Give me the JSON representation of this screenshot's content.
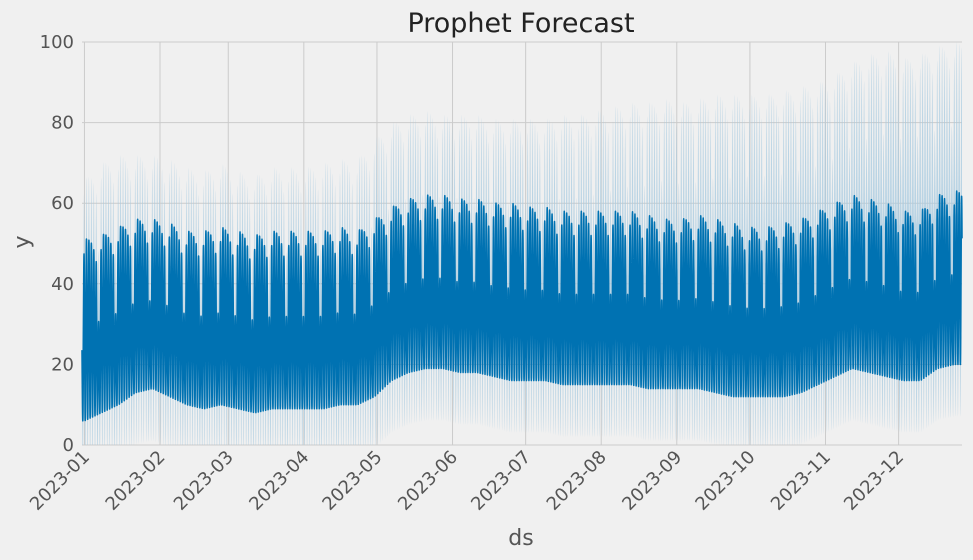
{
  "chart_data": {
    "type": "line",
    "title": "Prophet Forecast",
    "xlabel": "ds",
    "ylabel": "y",
    "x_range": [
      "2022-12-31",
      "2023-12-27"
    ],
    "ylim": [
      0,
      100
    ],
    "x_ticks": [
      "2023-01",
      "2023-02",
      "2023-03",
      "2023-04",
      "2023-05",
      "2023-06",
      "2023-07",
      "2023-08",
      "2023-09",
      "2023-10",
      "2023-11",
      "2023-12"
    ],
    "y_ticks": [
      0,
      20,
      40,
      60,
      80,
      100
    ],
    "grid": true,
    "legend": "none",
    "colors": {
      "forecast": "#0072b2",
      "interval": "#a8cbe0",
      "background": "#f0f0f0",
      "grid": "#cbcbcb"
    },
    "weekly_envelope": {
      "x": [
        "2023-01-01",
        "2023-01-08",
        "2023-01-15",
        "2023-01-22",
        "2023-01-29",
        "2023-02-05",
        "2023-02-12",
        "2023-02-19",
        "2023-02-26",
        "2023-03-05",
        "2023-03-12",
        "2023-03-19",
        "2023-03-26",
        "2023-04-02",
        "2023-04-09",
        "2023-04-16",
        "2023-04-23",
        "2023-04-30",
        "2023-05-07",
        "2023-05-14",
        "2023-05-21",
        "2023-05-28",
        "2023-06-04",
        "2023-06-11",
        "2023-06-18",
        "2023-06-25",
        "2023-07-02",
        "2023-07-09",
        "2023-07-16",
        "2023-07-23",
        "2023-07-30",
        "2023-08-06",
        "2023-08-13",
        "2023-08-20",
        "2023-08-27",
        "2023-09-03",
        "2023-09-10",
        "2023-09-17",
        "2023-09-24",
        "2023-10-01",
        "2023-10-08",
        "2023-10-15",
        "2023-10-22",
        "2023-10-29",
        "2023-11-05",
        "2023-11-12",
        "2023-11-19",
        "2023-11-26",
        "2023-12-03",
        "2023-12-10",
        "2023-12-17",
        "2023-12-24"
      ],
      "yhat_max": [
        51,
        52,
        54,
        56,
        56,
        55,
        53,
        53,
        54,
        53,
        52,
        53,
        53,
        53,
        53,
        54,
        53,
        56,
        59,
        61,
        62,
        62,
        61,
        61,
        60,
        60,
        59,
        59,
        58,
        58,
        58,
        58,
        58,
        57,
        56,
        56,
        57,
        56,
        55,
        54,
        54,
        55,
        56,
        58,
        60,
        62,
        61,
        60,
        58,
        58,
        62,
        63
      ],
      "yhat_min": [
        6,
        8,
        10,
        13,
        14,
        12,
        10,
        9,
        10,
        9,
        8,
        9,
        9,
        9,
        9,
        10,
        10,
        12,
        16,
        18,
        19,
        19,
        18,
        18,
        17,
        16,
        16,
        16,
        15,
        15,
        15,
        15,
        15,
        14,
        14,
        14,
        14,
        13,
        12,
        12,
        12,
        12,
        13,
        15,
        17,
        19,
        18,
        17,
        16,
        16,
        19,
        20
      ],
      "upper_max": [
        66,
        70,
        72,
        72,
        72,
        71,
        69,
        68,
        70,
        68,
        67,
        69,
        69,
        69,
        70,
        71,
        71,
        76,
        80,
        82,
        83,
        82,
        82,
        82,
        81,
        81,
        81,
        81,
        82,
        82,
        83,
        84,
        85,
        85,
        86,
        85,
        86,
        87,
        87,
        87,
        87,
        88,
        89,
        90,
        92,
        95,
        97,
        98,
        96,
        97,
        99,
        100
      ]
    }
  }
}
